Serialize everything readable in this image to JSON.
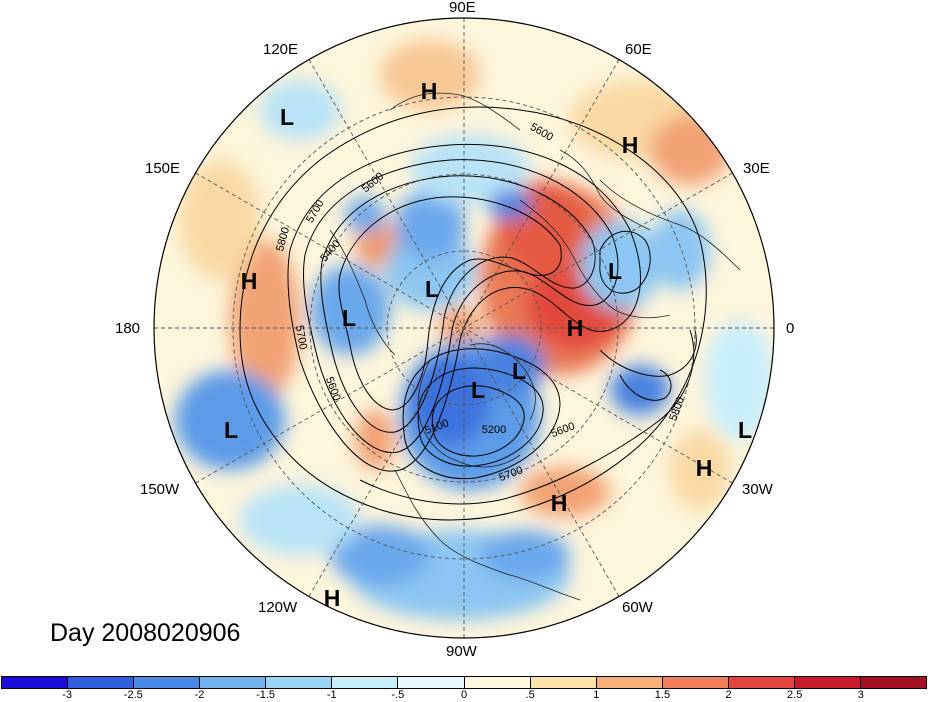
{
  "title": "Day 2008020906",
  "longitude_labels": [
    "90E",
    "60E",
    "30E",
    "0",
    "30W",
    "60W",
    "90W",
    "120W",
    "150W",
    "180",
    "150E",
    "120E"
  ],
  "pressure_centers": [
    {
      "label": "H"
    },
    {
      "label": "L"
    },
    {
      "label": "H"
    },
    {
      "label": "H"
    },
    {
      "label": "L"
    },
    {
      "label": "L"
    },
    {
      "label": "L"
    },
    {
      "label": "H"
    },
    {
      "label": "L"
    },
    {
      "label": "L"
    },
    {
      "label": "L"
    },
    {
      "label": "H"
    },
    {
      "label": "H"
    },
    {
      "label": "L"
    },
    {
      "label": "H"
    }
  ],
  "contour_labels": [
    "5600",
    "5600",
    "5700",
    "5800",
    "5400",
    "5700",
    "5600",
    "5100",
    "5200",
    "5600",
    "5700",
    "5800"
  ],
  "colorbar": {
    "ticks": [
      "-3",
      "-2.5",
      "-2",
      "-1.5",
      "-1",
      "-.5",
      "0",
      ".5",
      "1",
      "1.5",
      "2",
      "2.5",
      "3"
    ],
    "colors": [
      "#1a0fd6",
      "#2f5fe0",
      "#4a8ae6",
      "#6fb2ee",
      "#9ad5f6",
      "#c9eefb",
      "#eaf8fd",
      "#fdf8de",
      "#fbe3a9",
      "#f7b07a",
      "#f07e5b",
      "#e2443c",
      "#c81b2a",
      "#a50f22"
    ]
  }
}
